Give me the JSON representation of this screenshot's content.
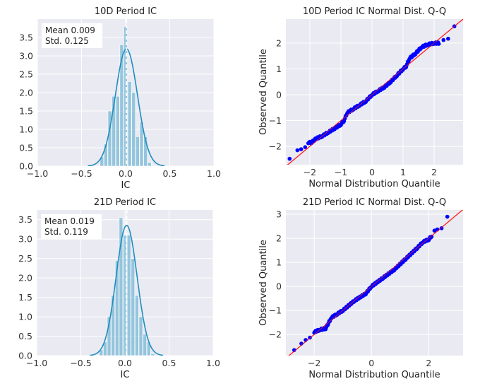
{
  "chart_data": [
    {
      "type": "bar",
      "title": "10D Period IC",
      "xlabel": "IC",
      "ylabel": "",
      "xlim": [
        -1.0,
        1.0
      ],
      "ylim": [
        0,
        4.0
      ],
      "xticks": [
        "−1.0",
        "−0.5",
        "0.0",
        "0.5",
        "1.0"
      ],
      "xtick_values": [
        -1.0,
        -0.5,
        0.0,
        0.5,
        1.0
      ],
      "yticks": [
        "0.0",
        "0.5",
        "1.0",
        "1.5",
        "2.0",
        "2.5",
        "3.0",
        "3.5"
      ],
      "ytick_values": [
        0,
        0.5,
        1,
        1.5,
        2,
        2.5,
        3,
        3.5
      ],
      "annotation": [
        "Mean 0.009",
        " Std. 0.125"
      ],
      "mean": 0.009,
      "std": 0.125,
      "bin_start": -0.29,
      "bin_width": 0.045,
      "values": [
        0.25,
        0.6,
        1.5,
        1.9,
        1.9,
        3.3,
        3.8,
        2.3,
        2.0,
        0.8,
        1.2,
        0.8,
        0.1
      ],
      "grid": true,
      "color": "#1f8ebf"
    },
    {
      "type": "scatter",
      "title": "10D Period IC Normal Dist. Q-Q",
      "xlabel": "Normal Distribution Quantile",
      "ylabel": "Observed Quantile",
      "xlim": [
        -2.77,
        2.93
      ],
      "ylim": [
        -2.71,
        2.93
      ],
      "xticks": [
        "−2",
        "−1",
        "0",
        "1",
        "2"
      ],
      "xtick_values": [
        -2,
        -1,
        0,
        1,
        2
      ],
      "yticks": [
        "−2",
        "−1",
        "0",
        "1",
        "2"
      ],
      "ytick_values": [
        -2,
        -1,
        0,
        1,
        2
      ],
      "points": [
        [
          -2.65,
          -2.45
        ],
        [
          -2.4,
          -2.12
        ],
        [
          -2.28,
          -2.08
        ],
        [
          -2.15,
          -2.0
        ],
        [
          -2.05,
          -1.85
        ],
        [
          -1.95,
          -1.85
        ],
        [
          -1.8,
          -1.7
        ],
        [
          -1.6,
          -1.6
        ],
        [
          -1.4,
          -1.45
        ],
        [
          -1.2,
          -1.3
        ],
        [
          -1.0,
          -1.15
        ],
        [
          -0.9,
          -1.0
        ],
        [
          -0.8,
          -0.7
        ],
        [
          -0.6,
          -0.55
        ],
        [
          -0.4,
          -0.4
        ],
        [
          -0.2,
          -0.25
        ],
        [
          0,
          0
        ],
        [
          0.2,
          0.15
        ],
        [
          0.4,
          0.3
        ],
        [
          0.6,
          0.5
        ],
        [
          0.8,
          0.75
        ],
        [
          1.0,
          1.0
        ],
        [
          1.1,
          1.1
        ],
        [
          1.2,
          1.4
        ],
        [
          1.4,
          1.6
        ],
        [
          1.6,
          1.85
        ],
        [
          1.8,
          1.95
        ],
        [
          2.0,
          2.0
        ],
        [
          2.15,
          2.0
        ],
        [
          2.3,
          2.15
        ],
        [
          2.45,
          2.2
        ],
        [
          2.65,
          2.65
        ]
      ],
      "sparse_from": 28,
      "grid": true,
      "point_color": "#0000ff",
      "line_color": "#ff2020"
    },
    {
      "type": "bar",
      "title": "21D Period IC",
      "xlabel": "IC",
      "ylabel": "",
      "xlim": [
        -1.0,
        1.0
      ],
      "ylim": [
        0,
        3.75
      ],
      "xticks": [
        "−1.0",
        "−0.5",
        "0.0",
        "0.5",
        "1.0"
      ],
      "xtick_values": [
        -1.0,
        -0.5,
        0.0,
        0.5,
        1.0
      ],
      "yticks": [
        "0.0",
        "0.5",
        "1.0",
        "1.5",
        "2.0",
        "2.5",
        "3.0",
        "3.5"
      ],
      "ytick_values": [
        0,
        0.5,
        1,
        1.5,
        2,
        2.5,
        3,
        3.5
      ],
      "annotation": [
        "Mean 0.019",
        " Std. 0.119"
      ],
      "mean": 0.019,
      "std": 0.119,
      "bin_start": -0.29,
      "bin_width": 0.045,
      "values": [
        0.15,
        0.35,
        1.0,
        1.55,
        2.45,
        3.55,
        3.1,
        3.1,
        2.5,
        1.55,
        1.0,
        0.55,
        0.35,
        0.05
      ],
      "grid": true,
      "color": "#1f8ebf"
    },
    {
      "type": "scatter",
      "title": "21D Period IC Normal Dist. Q-Q",
      "xlabel": "Normal Distribution Quantile",
      "ylabel": "Observed Quantile",
      "xlim": [
        -2.99,
        3.2
      ],
      "ylim": [
        -2.88,
        3.18
      ],
      "xticks": [
        "−2",
        "0",
        "2"
      ],
      "xtick_values": [
        -2,
        0,
        2
      ],
      "yticks": [
        "−2",
        "−1",
        "0",
        "1",
        "2",
        "3"
      ],
      "ytick_values": [
        -2,
        -1,
        0,
        1,
        2,
        3
      ],
      "points": [
        [
          -2.7,
          -2.62
        ],
        [
          -2.45,
          -2.35
        ],
        [
          -2.3,
          -2.2
        ],
        [
          -2.15,
          -2.1
        ],
        [
          -2.0,
          -1.9
        ],
        [
          -1.8,
          -1.8
        ],
        [
          -1.6,
          -1.75
        ],
        [
          -1.4,
          -1.3
        ],
        [
          -1.2,
          -1.15
        ],
        [
          -1.0,
          -1.0
        ],
        [
          -0.6,
          -0.6
        ],
        [
          -0.2,
          -0.3
        ],
        [
          0,
          0
        ],
        [
          0.4,
          0.35
        ],
        [
          0.8,
          0.7
        ],
        [
          1.2,
          1.15
        ],
        [
          1.6,
          1.6
        ],
        [
          1.8,
          1.85
        ],
        [
          2.0,
          1.95
        ],
        [
          2.1,
          2.1
        ],
        [
          2.2,
          2.35
        ],
        [
          2.3,
          2.4
        ],
        [
          2.45,
          2.45
        ],
        [
          2.65,
          2.9
        ]
      ],
      "sparse_from": 19,
      "grid": true,
      "point_color": "#0000ff",
      "line_color": "#ff2020"
    }
  ]
}
